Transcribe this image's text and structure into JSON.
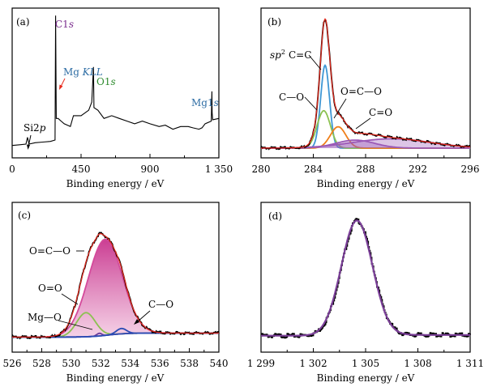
{
  "chart_data": [
    {
      "type": "line",
      "panel_label": "(a)",
      "xlabel": "Binding energy / eV",
      "ylabel": "",
      "xlim": [
        0,
        1350
      ],
      "ylim": [
        0,
        100
      ],
      "xticks": [
        0,
        450,
        900,
        1350
      ],
      "xtick_labels": [
        "0",
        "450",
        "900",
        "1 350"
      ],
      "grid": false,
      "series": [
        {
          "color": "#000000",
          "x": [
            0,
            50,
            90,
            100,
            110,
            150,
            200,
            250,
            280,
            284,
            288,
            300,
            320,
            340,
            380,
            400,
            450,
            500,
            520,
            531,
            534,
            560,
            600,
            650,
            700,
            750,
            800,
            850,
            900,
            960,
            1000,
            1050,
            1100,
            1150,
            1180,
            1220,
            1240,
            1260,
            1300,
            1303,
            1304.5,
            1306,
            1310,
            1350
          ],
          "y": [
            2,
            2.5,
            3,
            8,
            3,
            4,
            4.5,
            5,
            6,
            98,
            22,
            22,
            20,
            18,
            16,
            24,
            24,
            28,
            34,
            60,
            30,
            28,
            22,
            24,
            22,
            20,
            18,
            20,
            18,
            16,
            17,
            14,
            16,
            16,
            15,
            14,
            15,
            18,
            20,
            33,
            42,
            26,
            21,
            22
          ]
        }
      ],
      "annotations": [
        {
          "text": "C1",
          "italic": "s",
          "color": "#7b2d8e",
          "x": 284
        },
        {
          "text": "Mg ",
          "italic": "KLL",
          "color": "#2e6da4",
          "x": 305
        },
        {
          "text": "O1",
          "italic": "s",
          "color": "#2e8b2e",
          "x": 531
        },
        {
          "text": "Mg1",
          "italic": "s",
          "color": "#2e6da4",
          "x": 1304.5
        },
        {
          "text": "Si2",
          "italic": "p",
          "color": "#000000",
          "x": 100
        }
      ]
    },
    {
      "type": "line",
      "panel_label": "(b)",
      "xlabel": "Binding energy / eV",
      "ylabel": "",
      "xlim": [
        280,
        296
      ],
      "ylim": [
        0,
        100
      ],
      "xticks": [
        280,
        284,
        288,
        292,
        296
      ],
      "xtick_labels": [
        "280",
        "284",
        "288",
        "292",
        "296"
      ],
      "grid": false,
      "series": [
        {
          "label": "sp² C=C",
          "component": "C=C",
          "color": "#3f97d4",
          "peak": 284.9,
          "fwhm": 0.8,
          "height": 62
        },
        {
          "label": "C–O",
          "component": "C-O",
          "color": "#8cc152",
          "peak": 284.8,
          "fwhm": 1.2,
          "height": 28
        },
        {
          "label": "O=C–O",
          "component": "O=C-O",
          "color": "#ef7f1a",
          "peak": 285.9,
          "fwhm": 1.4,
          "height": 16
        },
        {
          "label": "C=O",
          "component": "C=O",
          "color": "#9b59b6",
          "peak": 287.2,
          "fwhm": 3.5,
          "height": 6
        },
        {
          "component": "background",
          "color": "#9b59b6",
          "peak": 290.0,
          "fwhm": 7.0,
          "height": 7
        },
        {
          "component": "raw",
          "color": "#000000",
          "note": "data"
        },
        {
          "component": "fit",
          "color": "#e8291c"
        }
      ],
      "annotations": [
        {
          "prefix": "sp",
          "sup": "2",
          "text": "C",
          "bond": "=",
          "text2": "C",
          "x": 284.9
        },
        {
          "text": "C",
          "bond": "—",
          "text2": "O",
          "x": 284.8
        },
        {
          "text": "O",
          "bond": "=",
          "text2": "C—O",
          "x": 285.9
        },
        {
          "text": "C",
          "bond": "=",
          "text2": "O",
          "x": 287.2
        }
      ]
    },
    {
      "type": "line",
      "panel_label": "(c)",
      "xlabel": "Binding energy / eV",
      "ylabel": "",
      "xlim": [
        526,
        540
      ],
      "ylim": [
        0,
        100
      ],
      "xticks": [
        526,
        528,
        530,
        532,
        534,
        536,
        538,
        540
      ],
      "xtick_labels": [
        "526",
        "528",
        "530",
        "532",
        "534",
        "536",
        "538",
        "540"
      ],
      "grid": false,
      "series": [
        {
          "label": "O=C–O",
          "component": "O=C-O",
          "color": "#d44a9b",
          "peak": 532.3,
          "fwhm": 2.7,
          "height": 72
        },
        {
          "label": "O=O",
          "component": "O=O",
          "color": "#8cc152",
          "peak": 531.0,
          "fwhm": 1.5,
          "height": 18
        },
        {
          "label": "Mg–O",
          "component": "Mg-O",
          "color": "#6a3d9a",
          "peak": 531.9,
          "fwhm": 0.4,
          "height": 2
        },
        {
          "label": "C–O",
          "component": "C-O",
          "color": "#2b4bb4",
          "peak": 533.4,
          "fwhm": 0.8,
          "height": 4
        },
        {
          "component": "background",
          "color": "#2b4bb4"
        },
        {
          "component": "raw",
          "color": "#000000"
        },
        {
          "component": "fit",
          "color": "#e8291c"
        }
      ],
      "annotations": [
        {
          "text": "O",
          "bond": "=",
          "text2": "C—O",
          "x": 532.3
        },
        {
          "text": "O",
          "bond": "=",
          "text2": "O",
          "x": 531.0
        },
        {
          "text": "Mg",
          "bond": "—",
          "text2": "O",
          "x": 531.9
        },
        {
          "text": "C",
          "bond": "—",
          "text2": "O",
          "x": 533.4
        }
      ]
    },
    {
      "type": "line",
      "panel_label": "(d)",
      "xlabel": "Binding energy / eV",
      "ylabel": "",
      "xlim": [
        1299,
        1311
      ],
      "ylim": [
        0,
        100
      ],
      "xticks": [
        1299,
        1302,
        1305,
        1308,
        1311
      ],
      "xtick_labels": [
        "1 299",
        "1 302",
        "1 305",
        "1 308",
        "1 311"
      ],
      "grid": false,
      "series": [
        {
          "component": "fit",
          "color": "#7b3f98",
          "peak": 1304.5,
          "fwhm": 2.1,
          "height": 86
        },
        {
          "component": "raw",
          "color": "#000000"
        }
      ]
    }
  ]
}
